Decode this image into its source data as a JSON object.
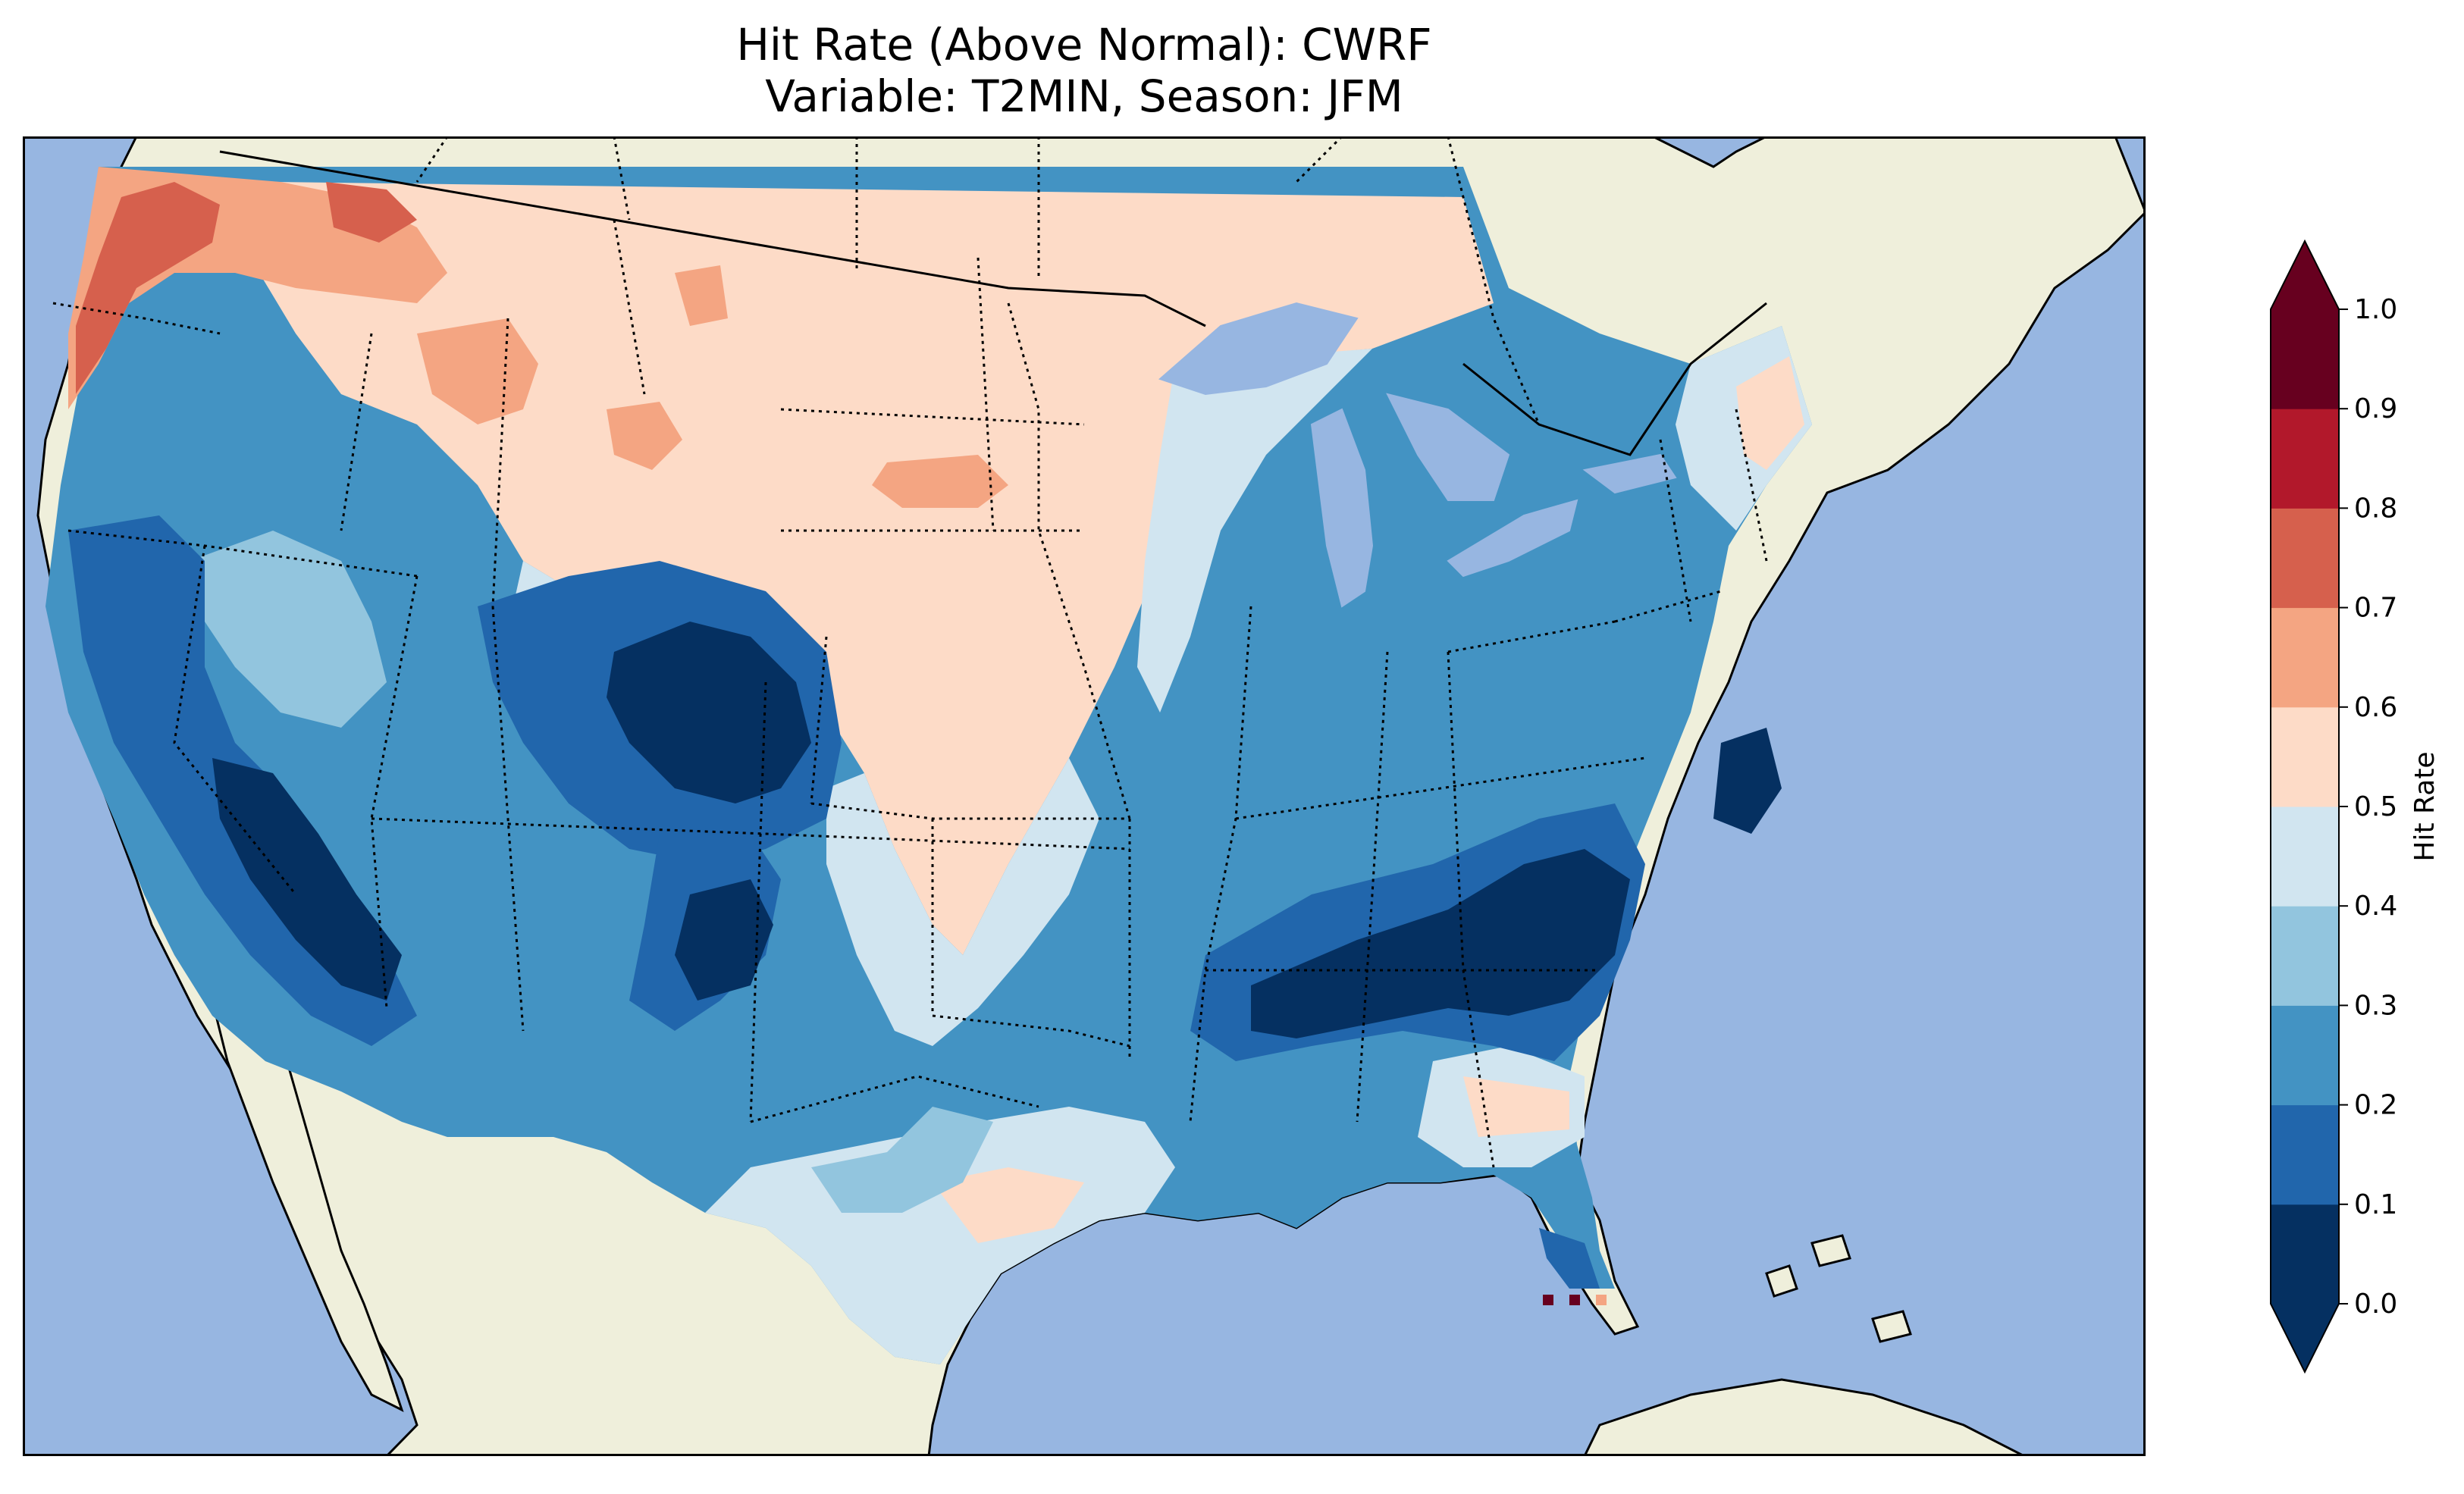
{
  "title": {
    "line1": "Hit Rate (Above Normal): CWRF",
    "line2": "Variable: T2MIN, Season: JFM"
  },
  "colorbar": {
    "label": "Hit Rate",
    "ticks": [
      "0.0",
      "0.1",
      "0.2",
      "0.3",
      "0.4",
      "0.5",
      "0.6",
      "0.7",
      "0.8",
      "0.9",
      "1.0"
    ],
    "extend": "both",
    "levels": [
      {
        "range": "0.0-0.1",
        "color": "#053061"
      },
      {
        "range": "0.1-0.2",
        "color": "#2166ac"
      },
      {
        "range": "0.2-0.3",
        "color": "#4393c3"
      },
      {
        "range": "0.3-0.4",
        "color": "#92c5de"
      },
      {
        "range": "0.4-0.5",
        "color": "#d1e5f0"
      },
      {
        "range": "0.5-0.6",
        "color": "#fddbc7"
      },
      {
        "range": "0.6-0.7",
        "color": "#f4a582"
      },
      {
        "range": "0.7-0.8",
        "color": "#d6604d"
      },
      {
        "range": "0.8-0.9",
        "color": "#b2182b"
      },
      {
        "range": "0.9-1.0",
        "color": "#67001f"
      }
    ]
  },
  "map": {
    "ocean_color": "#97b6e1",
    "land_color": "#efefdb",
    "lake_color": "#97b6e1",
    "region": "Contiguous United States"
  }
}
